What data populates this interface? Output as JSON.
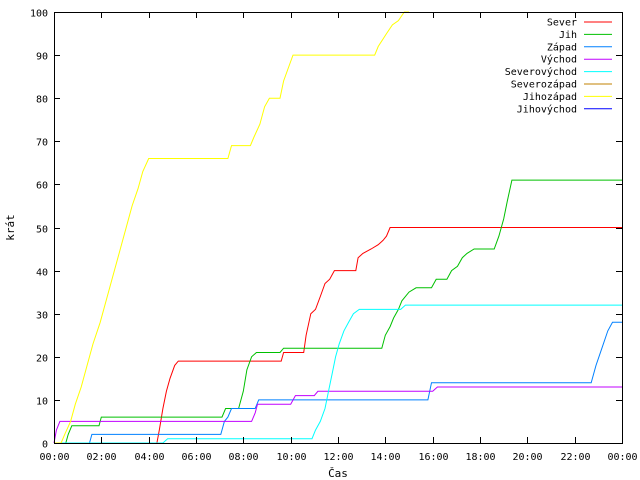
{
  "chart_data": {
    "type": "line",
    "title": "",
    "xlabel": "Čas",
    "ylabel": "krát",
    "xlim": [
      0,
      24
    ],
    "ylim": [
      0,
      100
    ],
    "x_ticks": [
      0,
      2,
      4,
      6,
      8,
      10,
      12,
      14,
      16,
      18,
      20,
      22,
      24
    ],
    "x_tick_labels": [
      "00:00",
      "02:00",
      "04:00",
      "06:00",
      "08:00",
      "10:00",
      "12:00",
      "14:00",
      "16:00",
      "18:00",
      "20:00",
      "22:00",
      "00:00"
    ],
    "y_ticks": [
      0,
      10,
      20,
      30,
      40,
      50,
      60,
      70,
      80,
      90,
      100
    ],
    "y_tick_labels": [
      "0",
      "10",
      "20",
      "30",
      "40",
      "50",
      "60",
      "70",
      "80",
      "90",
      "100"
    ],
    "grid": false,
    "legend_position": "top-right",
    "series": [
      {
        "name": "Sever",
        "color": "#ff0000",
        "points": [
          [
            0,
            0
          ],
          [
            4.35,
            0
          ],
          [
            4.45,
            3
          ],
          [
            4.6,
            8
          ],
          [
            4.75,
            12
          ],
          [
            4.9,
            15
          ],
          [
            5.1,
            18
          ],
          [
            5.25,
            19
          ],
          [
            9.6,
            19
          ],
          [
            9.7,
            21
          ],
          [
            10.55,
            21
          ],
          [
            10.65,
            25
          ],
          [
            10.85,
            30
          ],
          [
            11.05,
            31
          ],
          [
            11.25,
            34
          ],
          [
            11.45,
            37
          ],
          [
            11.65,
            38
          ],
          [
            11.85,
            40
          ],
          [
            12.75,
            40
          ],
          [
            12.85,
            43
          ],
          [
            13.05,
            44
          ],
          [
            13.4,
            45
          ],
          [
            13.7,
            46
          ],
          [
            13.9,
            47
          ],
          [
            14.05,
            48
          ],
          [
            14.2,
            50
          ],
          [
            24,
            50
          ]
        ]
      },
      {
        "name": "Jih",
        "color": "#00c000",
        "points": [
          [
            0,
            0
          ],
          [
            0.5,
            0
          ],
          [
            0.6,
            2
          ],
          [
            0.75,
            4
          ],
          [
            1.9,
            4
          ],
          [
            2.0,
            6
          ],
          [
            7.1,
            6
          ],
          [
            7.25,
            8
          ],
          [
            7.8,
            8
          ],
          [
            8.0,
            12
          ],
          [
            8.15,
            17
          ],
          [
            8.35,
            20
          ],
          [
            8.55,
            21
          ],
          [
            9.55,
            21
          ],
          [
            9.7,
            22
          ],
          [
            13.85,
            22
          ],
          [
            14.0,
            25
          ],
          [
            14.2,
            27
          ],
          [
            14.35,
            29
          ],
          [
            14.55,
            31
          ],
          [
            14.7,
            33
          ],
          [
            15.0,
            35
          ],
          [
            15.3,
            36
          ],
          [
            15.95,
            36
          ],
          [
            16.15,
            38
          ],
          [
            16.6,
            38
          ],
          [
            16.8,
            40
          ],
          [
            17.05,
            41
          ],
          [
            17.25,
            43
          ],
          [
            17.45,
            44
          ],
          [
            17.75,
            45
          ],
          [
            18.6,
            45
          ],
          [
            18.8,
            48
          ],
          [
            19.0,
            52
          ],
          [
            19.15,
            56
          ],
          [
            19.35,
            61
          ],
          [
            24,
            61
          ]
        ]
      },
      {
        "name": "Západ",
        "color": "#0080ff",
        "points": [
          [
            0,
            0
          ],
          [
            1.5,
            0
          ],
          [
            1.6,
            2
          ],
          [
            7.05,
            2
          ],
          [
            7.2,
            5
          ],
          [
            7.35,
            6
          ],
          [
            7.5,
            8
          ],
          [
            8.5,
            8
          ],
          [
            8.65,
            10
          ],
          [
            15.8,
            10
          ],
          [
            15.95,
            14
          ],
          [
            22.7,
            14
          ],
          [
            22.9,
            18
          ],
          [
            23.15,
            22
          ],
          [
            23.4,
            26
          ],
          [
            23.6,
            28
          ],
          [
            24,
            28
          ]
        ]
      },
      {
        "name": "Východ",
        "color": "#c000ff",
        "points": [
          [
            0,
            0
          ],
          [
            0.1,
            3
          ],
          [
            0.25,
            5
          ],
          [
            8.35,
            5
          ],
          [
            8.5,
            7
          ],
          [
            8.6,
            9
          ],
          [
            10.0,
            9
          ],
          [
            10.2,
            11
          ],
          [
            11.0,
            11
          ],
          [
            11.15,
            12
          ],
          [
            16.0,
            12
          ],
          [
            16.2,
            13
          ],
          [
            24,
            13
          ]
        ]
      },
      {
        "name": "Severovýchod",
        "color": "#00ffff",
        "points": [
          [
            0,
            0
          ],
          [
            4.6,
            0
          ],
          [
            4.8,
            1
          ],
          [
            10.9,
            1
          ],
          [
            11.05,
            3
          ],
          [
            11.25,
            5
          ],
          [
            11.45,
            8
          ],
          [
            11.6,
            12
          ],
          [
            11.75,
            16
          ],
          [
            11.9,
            20
          ],
          [
            12.05,
            23
          ],
          [
            12.25,
            26
          ],
          [
            12.45,
            28
          ],
          [
            12.65,
            30
          ],
          [
            12.9,
            31
          ],
          [
            14.65,
            31
          ],
          [
            14.85,
            32
          ],
          [
            24,
            32
          ]
        ]
      },
      {
        "name": "Severozápad",
        "color": "#c08000",
        "points": []
      },
      {
        "name": "Jihozápad",
        "color": "#ffff00",
        "points": [
          [
            0,
            0
          ],
          [
            0.3,
            0
          ],
          [
            0.45,
            2
          ],
          [
            0.7,
            5
          ],
          [
            0.9,
            9
          ],
          [
            1.15,
            13
          ],
          [
            1.4,
            18
          ],
          [
            1.65,
            23
          ],
          [
            1.95,
            28
          ],
          [
            2.2,
            33
          ],
          [
            2.5,
            39
          ],
          [
            2.8,
            45
          ],
          [
            3.05,
            50
          ],
          [
            3.3,
            55
          ],
          [
            3.55,
            59
          ],
          [
            3.75,
            63
          ],
          [
            4.0,
            66
          ],
          [
            7.35,
            66
          ],
          [
            7.5,
            69
          ],
          [
            8.3,
            69
          ],
          [
            8.45,
            71
          ],
          [
            8.7,
            74
          ],
          [
            8.9,
            78
          ],
          [
            9.1,
            80
          ],
          [
            9.55,
            80
          ],
          [
            9.7,
            84
          ],
          [
            9.9,
            87
          ],
          [
            10.1,
            90
          ],
          [
            13.55,
            90
          ],
          [
            13.7,
            92
          ],
          [
            14.05,
            95
          ],
          [
            14.3,
            97
          ],
          [
            14.55,
            98
          ],
          [
            14.8,
            100
          ],
          [
            15.0,
            100
          ]
        ]
      },
      {
        "name": "Jihovýchod",
        "color": "#0000ff",
        "points": []
      }
    ]
  }
}
